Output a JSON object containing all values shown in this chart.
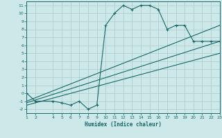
{
  "xlabel": "Humidex (Indice chaleur)",
  "bg_color": "#cce8e8",
  "grid_color": "#aacccc",
  "line_color": "#1a6666",
  "xlim": [
    1,
    23
  ],
  "ylim": [
    -2.5,
    11.5
  ],
  "xticks": [
    1,
    2,
    4,
    5,
    6,
    7,
    8,
    9,
    10,
    11,
    12,
    13,
    14,
    15,
    16,
    17,
    18,
    19,
    20,
    21,
    22,
    23
  ],
  "yticks": [
    -2,
    -1,
    0,
    1,
    2,
    3,
    4,
    5,
    6,
    7,
    8,
    9,
    10,
    11
  ],
  "main_x": [
    1,
    2,
    4,
    5,
    6,
    7,
    8,
    9,
    10,
    11,
    12,
    13,
    14,
    15,
    16,
    17,
    18,
    19,
    20,
    21,
    22,
    23
  ],
  "main_y": [
    0,
    -1,
    -1,
    -1.2,
    -1.5,
    -1,
    -2,
    -1.5,
    8.5,
    10,
    11,
    10.5,
    11,
    11,
    10.5,
    8.0,
    8.5,
    8.5,
    6.5,
    6.5,
    6.5,
    6.5
  ],
  "line2_x": [
    1,
    23
  ],
  "line2_y": [
    -1.0,
    8.5
  ],
  "line3_x": [
    1,
    23
  ],
  "line3_y": [
    -1.2,
    6.5
  ],
  "line4_x": [
    1,
    23
  ],
  "line4_y": [
    -1.5,
    5.0
  ]
}
